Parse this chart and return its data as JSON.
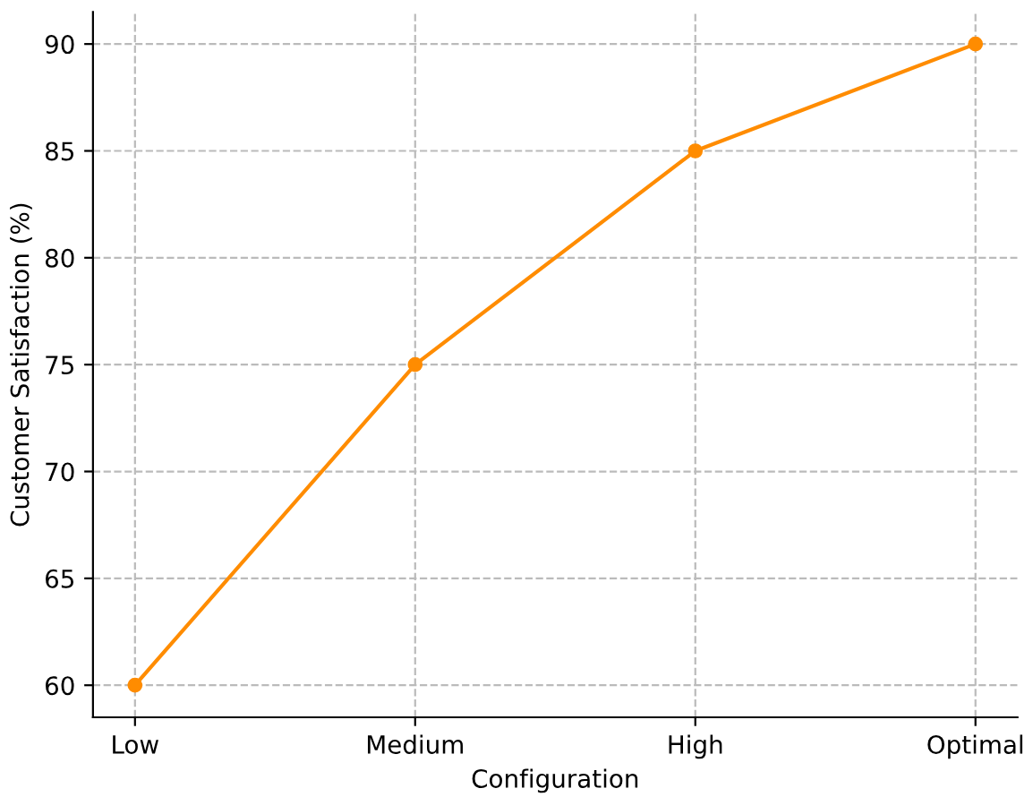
{
  "chart_data": {
    "type": "line",
    "xlabel": "Configuration",
    "ylabel": "Customer Satisfaction (%)",
    "categories": [
      "Low",
      "Medium",
      "High",
      "Optimal"
    ],
    "series": [
      {
        "color": "#ff8c00",
        "values": [
          60,
          75,
          85,
          90
        ]
      }
    ],
    "ylim": [
      58.5,
      91.5
    ],
    "yticks": [
      60,
      65,
      70,
      75,
      80,
      85,
      90
    ],
    "grid": true,
    "marker": "circle",
    "line_style": "solid"
  }
}
